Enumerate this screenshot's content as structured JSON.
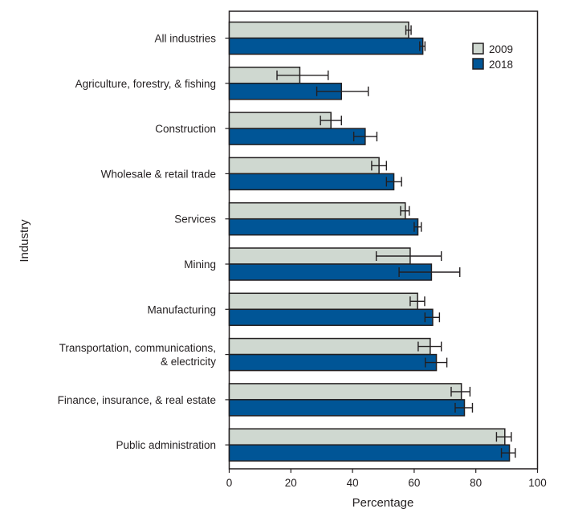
{
  "chart_data": {
    "type": "bar",
    "orientation": "horizontal",
    "xlabel": "Percentage",
    "ylabel": "Industry",
    "xlim": [
      0,
      100
    ],
    "xticks": [
      0,
      20,
      40,
      60,
      80,
      100
    ],
    "grid": false,
    "legend_position": "top-right",
    "categories": [
      "All industries",
      "Agriculture, forestry, & fishing",
      "Construction",
      "Wholesale & retail trade",
      "Services",
      "Mining",
      "Manufacturing",
      "Transportation, communications, & electricity",
      "Finance, insurance, & real estate",
      "Public administration"
    ],
    "category_lines": [
      [
        "All industries"
      ],
      [
        "Agriculture, forestry, & fishing"
      ],
      [
        "Construction"
      ],
      [
        "Wholesale & retail trade"
      ],
      [
        "Services"
      ],
      [
        "Mining"
      ],
      [
        "Manufacturing"
      ],
      [
        "Transportation, communications,",
        "& electricity"
      ],
      [
        "Finance, insurance, & real estate"
      ],
      [
        "Public administration"
      ]
    ],
    "series": [
      {
        "name": "2009",
        "color": "#cfd8d0",
        "values": [
          58.2,
          22.9,
          33.0,
          48.6,
          57.1,
          58.7,
          61.1,
          65.2,
          75.3,
          89.4
        ],
        "ci_low": [
          57.3,
          15.5,
          29.6,
          46.2,
          55.6,
          47.7,
          58.7,
          61.3,
          72.0,
          86.7
        ],
        "ci_high": [
          59.0,
          32.1,
          36.4,
          51.0,
          58.4,
          68.8,
          63.4,
          68.8,
          78.1,
          91.5
        ]
      },
      {
        "name": "2018",
        "color": "#005596",
        "values": [
          62.8,
          36.4,
          44.1,
          53.4,
          61.2,
          65.6,
          66.0,
          67.2,
          76.3,
          90.9
        ],
        "ci_low": [
          61.8,
          28.4,
          40.4,
          51.0,
          60.0,
          55.1,
          63.5,
          63.6,
          73.3,
          88.3
        ],
        "ci_high": [
          63.5,
          45.1,
          47.9,
          55.9,
          62.3,
          74.8,
          68.2,
          70.6,
          78.9,
          92.8
        ]
      }
    ]
  }
}
